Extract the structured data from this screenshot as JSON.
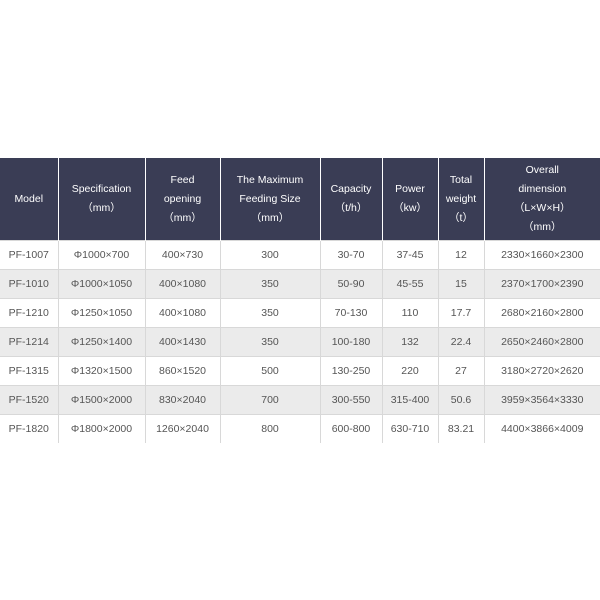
{
  "table": {
    "header": [
      [
        "Model"
      ],
      [
        "Specification",
        "（mm）"
      ],
      [
        "Feed",
        "opening",
        "（mm）"
      ],
      [
        "The Maximum",
        "Feeding Size",
        "（mm）"
      ],
      [
        "Capacity",
        "（t/h）"
      ],
      [
        "Power",
        "（kw）"
      ],
      [
        "Total",
        "weight",
        "（t）"
      ],
      [
        "Overall",
        "dimension",
        "（L×W×H）",
        "（mm）"
      ]
    ],
    "rows": [
      [
        "PF-1007",
        "Φ1000×700",
        "400×730",
        "300",
        "30-70",
        "37-45",
        "12",
        "2330×1660×2300"
      ],
      [
        "PF-1010",
        "Φ1000×1050",
        "400×1080",
        "350",
        "50-90",
        "45-55",
        "15",
        "2370×1700×2390"
      ],
      [
        "PF-1210",
        "Φ1250×1050",
        "400×1080",
        "350",
        "70-130",
        "110",
        "17.7",
        "2680×2160×2800"
      ],
      [
        "PF-1214",
        "Φ1250×1400",
        "400×1430",
        "350",
        "100-180",
        "132",
        "22.4",
        "2650×2460×2800"
      ],
      [
        "PF-1315",
        "Φ1320×1500",
        "860×1520",
        "500",
        "130-250",
        "220",
        "27",
        "3180×2720×2620"
      ],
      [
        "PF-1520",
        "Φ1500×2000",
        "830×2040",
        "700",
        "300-550",
        "315-400",
        "50.6",
        "3959×3564×3330"
      ],
      [
        "PF-1820",
        "Φ1800×2000",
        "1260×2040",
        "800",
        "600-800",
        "630-710",
        "83.21",
        "4400×3866×4009"
      ]
    ]
  }
}
